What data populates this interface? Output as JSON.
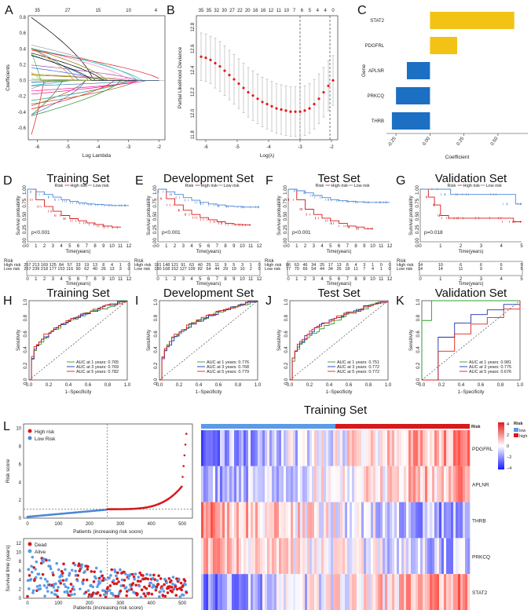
{
  "colors": {
    "high": "#d7191c",
    "low": "#4a86d6",
    "gold": "#f2c314",
    "blue": "#1c6fc2",
    "green": "#2ca02c",
    "navy": "#1f2fb0",
    "red": "#e0201b"
  },
  "panel_labels": [
    "A",
    "B",
    "C",
    "D",
    "E",
    "F",
    "G",
    "H",
    "I",
    "J",
    "K",
    "L"
  ],
  "chart_data": [
    {
      "id": "A",
      "type": "line",
      "title": "",
      "xlabel": "Log Lambda",
      "ylabel": "Coefficients",
      "xlim": [
        -6.3,
        -1.8
      ],
      "ylim": [
        -0.75,
        0.82
      ],
      "x_ticks": [
        "-6",
        "-5",
        "-4",
        "-3",
        "-2"
      ],
      "y_ticks": [
        "-0.6",
        "-0.4",
        "-0.2",
        "0.0",
        "0.2",
        "0.4",
        "0.6",
        "0.8"
      ],
      "top_ticks": [
        "35",
        "27",
        "15",
        "10",
        "4"
      ]
    },
    {
      "id": "B",
      "type": "scatter",
      "title": "",
      "xlabel": "Log(λ)",
      "ylabel": "Partial Likelihood Deviance",
      "xlim": [
        -6.3,
        -1.8
      ],
      "ylim": [
        11.7,
        12.85
      ],
      "x_ticks": [
        "-6",
        "-5",
        "-4",
        "-3",
        "-2"
      ],
      "y_ticks": [
        "11.8",
        "12.0",
        "12.2",
        "12.4",
        "12.6",
        "12.8"
      ],
      "top_ticks": [
        "35",
        "35",
        "32",
        "30",
        "27",
        "22",
        "20",
        "16",
        "16",
        "12",
        "11",
        "10",
        "7",
        "6",
        "5",
        "4",
        "4",
        "0"
      ],
      "vlines": [
        -3.0,
        -2.05
      ],
      "x": [
        -6.15,
        -6.0,
        -5.85,
        -5.7,
        -5.55,
        -5.4,
        -5.25,
        -5.1,
        -4.95,
        -4.8,
        -4.65,
        -4.5,
        -4.35,
        -4.2,
        -4.05,
        -3.9,
        -3.75,
        -3.6,
        -3.45,
        -3.3,
        -3.15,
        -3.0,
        -2.85,
        -2.7,
        -2.55,
        -2.4,
        -2.25,
        -2.1,
        -1.95
      ],
      "y": [
        12.47,
        12.46,
        12.44,
        12.41,
        12.38,
        12.34,
        12.3,
        12.26,
        12.22,
        12.18,
        12.14,
        12.11,
        12.08,
        12.05,
        12.03,
        12.01,
        11.99,
        11.98,
        11.97,
        11.96,
        11.96,
        11.96,
        11.97,
        11.99,
        12.03,
        12.08,
        12.14,
        12.2,
        12.25
      ],
      "err": [
        0.22,
        0.22,
        0.22,
        0.23,
        0.23,
        0.23,
        0.23,
        0.23,
        0.23,
        0.23,
        0.23,
        0.23,
        0.23,
        0.23,
        0.23,
        0.23,
        0.23,
        0.23,
        0.23,
        0.23,
        0.23,
        0.23,
        0.23,
        0.23,
        0.23,
        0.23,
        0.23,
        0.23,
        0.23
      ]
    },
    {
      "id": "C",
      "type": "bar",
      "title": "",
      "xlabel": "Coefficient",
      "ylabel": "Gene",
      "categories": [
        "STAT2",
        "PDGFRL",
        "APLNR",
        "PRKCQ",
        "THRB"
      ],
      "values": [
        0.62,
        0.2,
        -0.17,
        -0.25,
        -0.28
      ],
      "xlim": [
        -0.32,
        0.72
      ],
      "x_ticks": [
        "-0.25",
        "0.00",
        "0.25",
        "0.50"
      ]
    },
    {
      "id": "D",
      "type": "line",
      "title": "Training Set",
      "xlabel": "Time(years)",
      "ylabel": "Survival probability",
      "pvalue": "p<0.001",
      "legend": [
        "Risk",
        "High risk",
        "Low risk"
      ],
      "x_ticks": [
        "0",
        "1",
        "2",
        "3",
        "4",
        "5",
        "6",
        "7",
        "8",
        "9",
        "10",
        "11",
        "12"
      ],
      "y_ticks": [
        "0.00",
        "0.25",
        "0.50",
        "0.75",
        "1.00"
      ],
      "risk_table": {
        "title": "Risk",
        "rows": [
          "High risk",
          "Low risk"
        ],
        "high": [
          "257",
          "213",
          "169",
          "125",
          "84",
          "57",
          "33",
          "19",
          "13",
          "8",
          "4",
          "1",
          "0"
        ],
        "low": [
          "257",
          "239",
          "218",
          "177",
          "153",
          "116",
          "90",
          "62",
          "40",
          "26",
          "13",
          "3",
          "0"
        ]
      },
      "series": [
        {
          "name": "High risk",
          "x": [
            0,
            1,
            2,
            3,
            4,
            5,
            6,
            7,
            8,
            9,
            10,
            11
          ],
          "y": [
            1.0,
            0.8,
            0.67,
            0.58,
            0.5,
            0.44,
            0.4,
            0.36,
            0.33,
            0.3,
            0.28,
            0.27
          ]
        },
        {
          "name": "Low risk",
          "x": [
            0,
            1,
            2,
            3,
            4,
            5,
            6,
            7,
            8,
            9,
            10,
            11,
            12
          ],
          "y": [
            1.0,
            0.95,
            0.9,
            0.85,
            0.8,
            0.77,
            0.74,
            0.72,
            0.71,
            0.7,
            0.69,
            0.69,
            0.69
          ]
        }
      ]
    },
    {
      "id": "E",
      "type": "line",
      "title": "Development Set",
      "xlabel": "Time(years)",
      "ylabel": "Survival probability",
      "pvalue": "p<0.001",
      "legend": [
        "Risk",
        "High risk",
        "Low risk"
      ],
      "x_ticks": [
        "0",
        "1",
        "2",
        "3",
        "4",
        "5",
        "6",
        "7",
        "8",
        "9",
        "10",
        "11",
        "12"
      ],
      "y_ticks": [
        "0.00",
        "0.25",
        "0.50",
        "0.75",
        "1.00"
      ],
      "risk_table": {
        "title": "Risk",
        "rows": [
          "High risk",
          "Low risk"
        ],
        "high": [
          "181",
          "148",
          "121",
          "91",
          "63",
          "40",
          "25",
          "11",
          "9",
          "5",
          "3",
          "1",
          "0"
        ],
        "low": [
          "180",
          "168",
          "152",
          "127",
          "109",
          "82",
          "64",
          "44",
          "29",
          "19",
          "10",
          "2",
          "0"
        ]
      },
      "series": [
        {
          "name": "High risk",
          "x": [
            0,
            1,
            2,
            3,
            4,
            5,
            6,
            7,
            8,
            9,
            10,
            11
          ],
          "y": [
            1.0,
            0.82,
            0.7,
            0.6,
            0.52,
            0.46,
            0.42,
            0.38,
            0.35,
            0.33,
            0.32,
            0.32
          ]
        },
        {
          "name": "Low risk",
          "x": [
            0,
            1,
            2,
            3,
            4,
            5,
            6,
            7,
            8,
            9,
            10,
            11,
            12
          ],
          "y": [
            1.0,
            0.95,
            0.9,
            0.84,
            0.79,
            0.75,
            0.72,
            0.7,
            0.68,
            0.67,
            0.66,
            0.66,
            0.66
          ]
        }
      ]
    },
    {
      "id": "F",
      "type": "line",
      "title": "Test Set",
      "xlabel": "Time(years)",
      "ylabel": "Survival probability",
      "pvalue": "p<0.001",
      "legend": [
        "Risk",
        "High risk",
        "Low risk"
      ],
      "x_ticks": [
        "0",
        "1",
        "2",
        "3",
        "4",
        "5",
        "6",
        "7",
        "8",
        "9",
        "10",
        "11",
        "12"
      ],
      "y_ticks": [
        "0.00",
        "0.25",
        "0.50",
        "0.75",
        "1.00"
      ],
      "risk_table": {
        "title": "Risk",
        "rows": [
          "High risk",
          "Low risk"
        ],
        "high": [
          "86",
          "63",
          "46",
          "34",
          "25",
          "17",
          "13",
          "8",
          "4",
          "3",
          "1",
          "0",
          "0"
        ],
        "low": [
          "77",
          "70",
          "66",
          "54",
          "44",
          "34",
          "26",
          "18",
          "11",
          "7",
          "4",
          "1",
          "0"
        ]
      },
      "series": [
        {
          "name": "High risk",
          "x": [
            0,
            1,
            2,
            3,
            4,
            5,
            6,
            7,
            8,
            9,
            10
          ],
          "y": [
            1.0,
            0.8,
            0.62,
            0.52,
            0.45,
            0.4,
            0.35,
            0.3,
            0.28,
            0.25,
            0.25
          ]
        },
        {
          "name": "Low risk",
          "x": [
            0,
            1,
            2,
            3,
            4,
            5,
            6,
            7,
            8,
            9,
            10,
            11,
            12
          ],
          "y": [
            1.0,
            0.97,
            0.93,
            0.88,
            0.84,
            0.8,
            0.78,
            0.77,
            0.76,
            0.75,
            0.75,
            0.75,
            0.75
          ]
        }
      ]
    },
    {
      "id": "G",
      "type": "line",
      "title": "Validation Set",
      "xlabel": "Time(years)",
      "ylabel": "Survival probability",
      "pvalue": "p=0.018",
      "legend": [
        "Risk",
        "High risk",
        "Low risk"
      ],
      "x_ticks": [
        "0",
        "1",
        "2",
        "3",
        "4",
        "5"
      ],
      "y_ticks": [
        "0.00",
        "0.25",
        "0.50",
        "0.75",
        "1.00"
      ],
      "risk_table": {
        "title": "Risk",
        "rows": [
          "High risk",
          "Low risk"
        ],
        "high": [
          "14",
          "10",
          "6",
          "6",
          "6",
          "5"
        ],
        "low": [
          "14",
          "14",
          "11",
          "9",
          "6",
          "5"
        ]
      },
      "series": [
        {
          "name": "High risk",
          "x": [
            0,
            0.4,
            0.7,
            1.0,
            1.4,
            2.0,
            3.0,
            4.0,
            4.6,
            5.0
          ],
          "y": [
            1.0,
            0.85,
            0.7,
            0.5,
            0.45,
            0.45,
            0.45,
            0.45,
            0.38,
            0.38
          ]
        },
        {
          "name": "Low risk",
          "x": [
            0,
            1.0,
            1.5,
            2.0,
            3.0,
            4.0,
            4.7,
            5.0
          ],
          "y": [
            1.0,
            1.0,
            0.9,
            0.9,
            0.9,
            0.9,
            0.72,
            0.72
          ]
        }
      ]
    },
    {
      "id": "H",
      "type": "line",
      "title": "Training Set",
      "xlabel": "1−Specificity",
      "ylabel": "Sensitivity",
      "x_ticks": [
        "0.0",
        "0.2",
        "0.4",
        "0.6",
        "0.8",
        "1.0"
      ],
      "y_ticks": [
        "0.0",
        "0.2",
        "0.4",
        "0.6",
        "0.8",
        "1.0"
      ],
      "auc_labels": [
        "AUC at 1 years: 0.765",
        "AUC at 3 years: 0.769",
        "AUC at 5 years: 0.782"
      ],
      "auc": [
        0.765,
        0.769,
        0.782
      ]
    },
    {
      "id": "I",
      "type": "line",
      "title": "Development Set",
      "xlabel": "1−Specificity",
      "ylabel": "Sensitivity",
      "x_ticks": [
        "0.0",
        "0.2",
        "0.4",
        "0.6",
        "0.8",
        "1.0"
      ],
      "y_ticks": [
        "0.0",
        "0.2",
        "0.4",
        "0.6",
        "0.8",
        "1.0"
      ],
      "auc_labels": [
        "AUC at 1 years: 0.776",
        "AUC at 3 years: 0.768",
        "AUC at 5 years: 0.779"
      ],
      "auc": [
        0.776,
        0.768,
        0.779
      ]
    },
    {
      "id": "J",
      "type": "line",
      "title": "Test Set",
      "xlabel": "1−Specificity",
      "ylabel": "Sensitivity",
      "x_ticks": [
        "0.0",
        "0.2",
        "0.4",
        "0.6",
        "0.8",
        "1.0"
      ],
      "y_ticks": [
        "0.0",
        "0.2",
        "0.4",
        "0.6",
        "0.8",
        "1.0"
      ],
      "auc_labels": [
        "AUC at 1 years: 0.751",
        "AUC at 3 years: 0.772",
        "AUC at 5 years: 0.772"
      ],
      "auc": [
        0.751,
        0.772,
        0.772
      ]
    },
    {
      "id": "K",
      "type": "line",
      "title": "Validation Set",
      "xlabel": "1−Specificity",
      "ylabel": "Sensitivity",
      "x_ticks": [
        "0.0",
        "0.2",
        "0.4",
        "0.6",
        "0.8",
        "1.0"
      ],
      "y_ticks": [
        "0.0",
        "0.2",
        "0.4",
        "0.6",
        "0.8",
        "1.0"
      ],
      "auc_labels": [
        "AUC at 1 years: 0.981",
        "AUC at 3 years: 0.775",
        "AUC at 5 years: 0.676"
      ],
      "auc": [
        0.981,
        0.775,
        0.676
      ]
    },
    {
      "id": "L1",
      "type": "scatter",
      "title": "",
      "xlabel": "Patients (increasing risk socre)",
      "ylabel": "Risk score",
      "legend": [
        "High risk",
        "Low Risk"
      ],
      "x_ticks": [
        "0",
        "100",
        "200",
        "300",
        "400",
        "500"
      ],
      "y_ticks": [
        "0",
        "2",
        "4",
        "6",
        "8",
        "10"
      ],
      "xlim": [
        0,
        520
      ],
      "ylim": [
        0,
        10.5
      ],
      "cutoff_index": 257,
      "cutoff_score": 1.0,
      "max_score": 9.9
    },
    {
      "id": "L2",
      "type": "scatter",
      "title": "",
      "xlabel": "Patients (increasing risk score)",
      "ylabel": "Survival time (years)",
      "legend": [
        "Dead",
        "Alive"
      ],
      "x_ticks": [
        "0",
        "100",
        "200",
        "300",
        "400",
        "500"
      ],
      "y_ticks": [
        "0",
        "2",
        "4",
        "6",
        "8",
        "10",
        "12"
      ],
      "xlim": [
        0,
        520
      ],
      "ylim": [
        0,
        13
      ],
      "cutoff_index": 257
    },
    {
      "id": "L3",
      "type": "heatmap",
      "title": "Training Set",
      "rows": [
        "PDGFRL",
        "APLNR",
        "THRB",
        "PRKCQ",
        "STAT2"
      ],
      "annotation": "Risk",
      "annotation_levels": [
        "low",
        "high"
      ],
      "color_scale": {
        "min": -4,
        "max": 4,
        "ticks": [
          "4",
          "2",
          "0",
          "−2",
          "−4"
        ]
      },
      "n_columns": 514,
      "split_index": 257,
      "row_trend": [
        1.3,
        1.0,
        -1.3,
        -0.9,
        1.4
      ]
    }
  ]
}
